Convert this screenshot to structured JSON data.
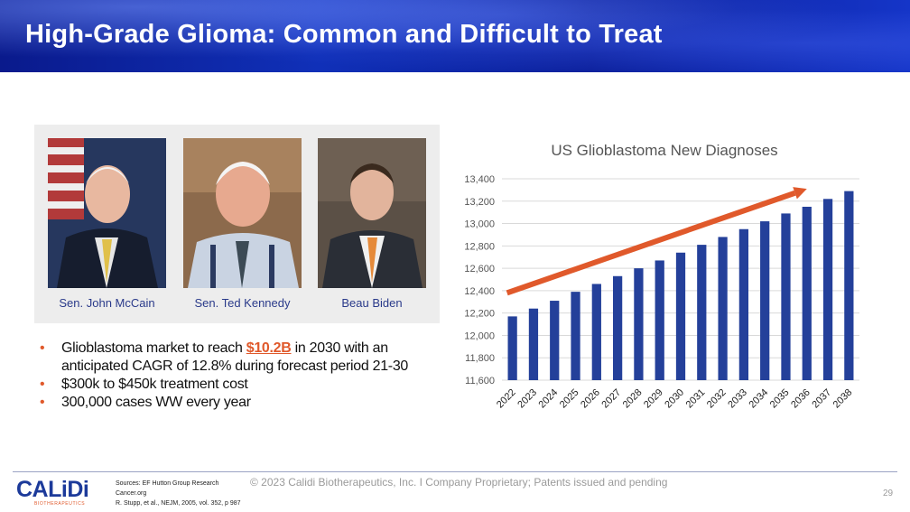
{
  "header": {
    "title": "High-Grade Glioma: Common and Difficult to Treat"
  },
  "photos": [
    {
      "caption": "Sen. John McCain"
    },
    {
      "caption": "Sen. Ted Kennedy"
    },
    {
      "caption": "Beau Biden"
    }
  ],
  "bullets": {
    "b1_pre": "Glioblastoma market to reach ",
    "b1_hl": "$10.2B",
    "b1_post": " in 2030 with an anticipated CAGR of 12.8% during forecast period 21-30",
    "b2": "$300k to $450k treatment cost",
    "b3": "300,000 cases WW every year",
    "marker": "•"
  },
  "chart_data": {
    "type": "bar",
    "title": "US Glioblastoma New Diagnoses",
    "categories": [
      "2022",
      "2023",
      "2024",
      "2025",
      "2026",
      "2027",
      "2028",
      "2029",
      "2030",
      "2031",
      "2032",
      "2033",
      "2034",
      "2035",
      "2036",
      "2037",
      "2038"
    ],
    "values": [
      12170,
      12240,
      12310,
      12390,
      12460,
      12530,
      12600,
      12670,
      12740,
      12810,
      12880,
      12950,
      13020,
      13090,
      13150,
      13220,
      13290
    ],
    "ylim": [
      11600,
      13400
    ],
    "yticks": [
      11600,
      11800,
      12000,
      12200,
      12400,
      12600,
      12800,
      13000,
      13200,
      13400
    ],
    "ytick_labels": [
      "11,600",
      "11,800",
      "12,000",
      "12,200",
      "12,400",
      "12,600",
      "12,800",
      "13,000",
      "13,200",
      "13,400"
    ],
    "bar_color": "#24409a",
    "arrow_color": "#e0592b",
    "annotation": "trend arrow (upward)",
    "grid": true,
    "xlabel": "",
    "ylabel": ""
  },
  "footer": {
    "logo_main": "CALiDi",
    "logo_sub": "BIOTHERAPEUTICS",
    "sources": [
      "Sources: EF Hutton Group Research",
      "Cancer.org",
      "R. Stupp, et al., NEJM, 2005, vol. 352, p 987"
    ],
    "copyright": "© 2023 Calidi Biotherapeutics, Inc. I  Company Proprietary; Patents issued and pending",
    "page_number": "29"
  }
}
